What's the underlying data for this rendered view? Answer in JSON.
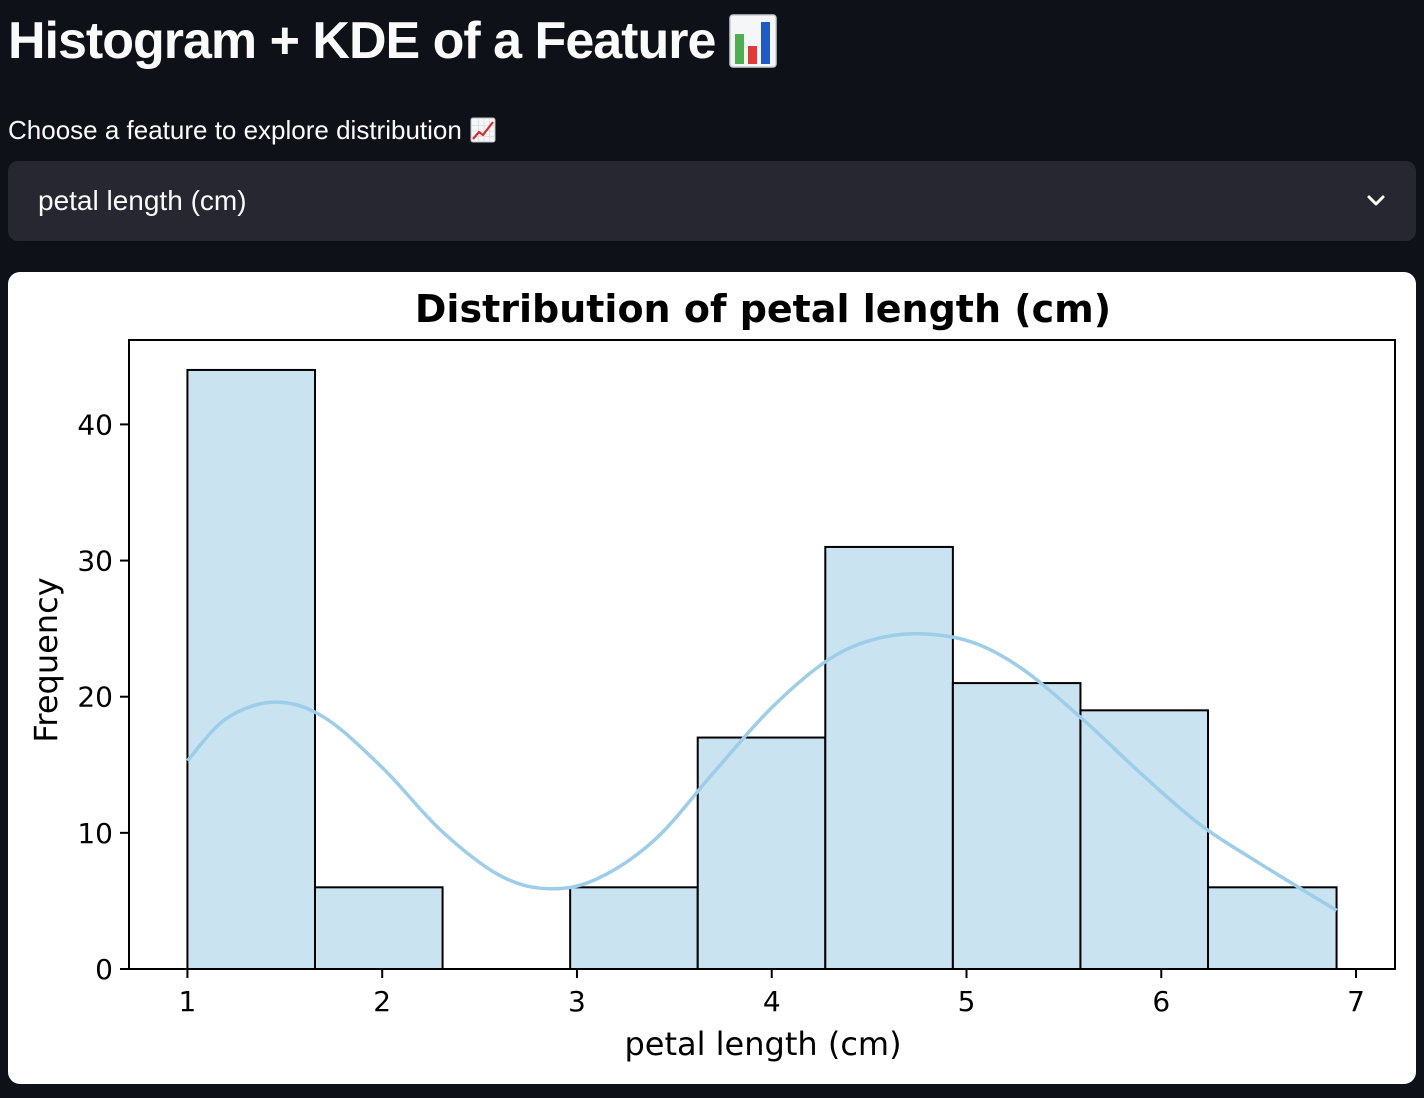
{
  "page": {
    "title": "Histogram + KDE of a Feature",
    "title_icon": "bar-chart-icon"
  },
  "selector": {
    "label": "Choose a feature to explore distribution",
    "label_icon": "chart-increasing-icon",
    "selected": "petal length (cm)",
    "dropdown_icon": "chevron-down-icon"
  },
  "colors": {
    "background": "#0e1117",
    "select_bg": "#262730",
    "bar_fill": "#c9e3f0",
    "kde_line": "#9ccde9"
  },
  "chart_data": {
    "type": "bar",
    "title": "Distribution of petal length (cm)",
    "xlabel": "petal length (cm)",
    "ylabel": "Frequency",
    "xlim": [
      0.7,
      7.2
    ],
    "ylim": [
      0,
      46.2
    ],
    "x_ticks": [
      "1",
      "2",
      "3",
      "4",
      "5",
      "6",
      "7"
    ],
    "y_ticks": [
      "0",
      "10",
      "20",
      "30",
      "40"
    ],
    "bins": [
      {
        "start": 1.0,
        "end": 1.655,
        "count": 44
      },
      {
        "start": 1.655,
        "end": 2.31,
        "count": 6
      },
      {
        "start": 2.31,
        "end": 2.965,
        "count": 0
      },
      {
        "start": 2.965,
        "end": 3.62,
        "count": 6
      },
      {
        "start": 3.62,
        "end": 4.275,
        "count": 17
      },
      {
        "start": 4.275,
        "end": 4.93,
        "count": 31
      },
      {
        "start": 4.93,
        "end": 5.585,
        "count": 21
      },
      {
        "start": 5.585,
        "end": 6.24,
        "count": 19
      },
      {
        "start": 6.24,
        "end": 6.9,
        "count": 6
      }
    ],
    "kde": {
      "x": [
        1.0,
        1.2,
        1.45,
        1.7,
        2.0,
        2.3,
        2.6,
        2.85,
        3.1,
        3.4,
        3.7,
        4.0,
        4.3,
        4.55,
        4.8,
        5.05,
        5.3,
        5.6,
        5.9,
        6.2,
        6.5,
        6.9
      ],
      "y": [
        15.3,
        18.4,
        19.6,
        18.5,
        14.8,
        10.2,
        6.9,
        5.9,
        6.6,
        9.5,
        14.4,
        19.2,
        22.8,
        24.3,
        24.6,
        23.9,
        21.9,
        18.3,
        14.3,
        10.6,
        7.8,
        4.3
      ]
    },
    "grid": false,
    "legend": false
  }
}
